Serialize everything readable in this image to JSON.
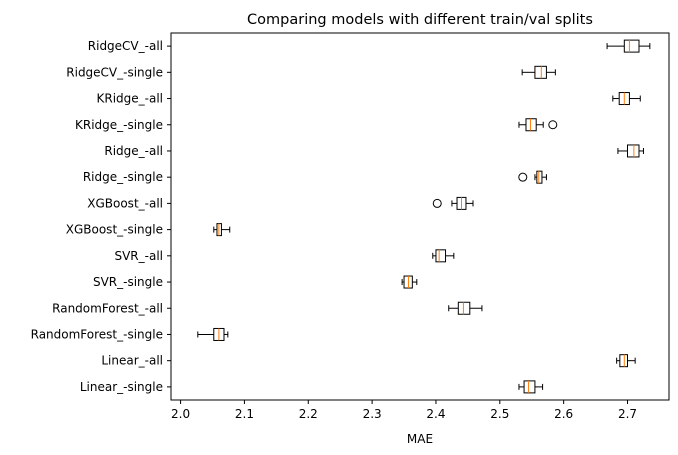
{
  "chart_data": {
    "type": "boxplot",
    "orientation": "horizontal",
    "title": "Comparing models with different train/val splits",
    "xlabel": "MAE",
    "ylabel": "",
    "xlim": [
      1.985,
      2.765
    ],
    "xticks": [
      2.0,
      2.1,
      2.2,
      2.3,
      2.4,
      2.5,
      2.6,
      2.7
    ],
    "xtick_labels": [
      "2.0",
      "2.1",
      "2.2",
      "2.3",
      "2.4",
      "2.5",
      "2.6",
      "2.7"
    ],
    "grid": false,
    "legend": false,
    "colors": {
      "box": "#000000",
      "median": "#ff7f0e",
      "flier": "#000000"
    },
    "categories": [
      "RidgeCV_-all",
      "RidgeCV_-single",
      "KRidge_-all",
      "KRidge_-single",
      "Ridge_-all",
      "Ridge_-single",
      "XGBoost_-all",
      "XGBoost_-single",
      "SVR_-all",
      "SVR_-single",
      "RandomForest_-all",
      "RandomForest_-single",
      "Linear_-all",
      "Linear_-single"
    ],
    "boxes": [
      {
        "whislo": 2.668,
        "q1": 2.695,
        "med": 2.703,
        "q3": 2.718,
        "whishi": 2.735,
        "fliers": []
      },
      {
        "whislo": 2.535,
        "q1": 2.555,
        "med": 2.565,
        "q3": 2.573,
        "whishi": 2.587,
        "fliers": []
      },
      {
        "whislo": 2.677,
        "q1": 2.687,
        "med": 2.695,
        "q3": 2.703,
        "whishi": 2.72,
        "fliers": []
      },
      {
        "whislo": 2.53,
        "q1": 2.541,
        "med": 2.548,
        "q3": 2.557,
        "whishi": 2.568,
        "fliers": [
          2.583
        ]
      },
      {
        "whislo": 2.685,
        "q1": 2.7,
        "med": 2.71,
        "q3": 2.718,
        "whishi": 2.725,
        "fliers": []
      },
      {
        "whislo": 2.555,
        "q1": 2.558,
        "med": 2.561,
        "q3": 2.566,
        "whishi": 2.573,
        "fliers": [
          2.536
        ]
      },
      {
        "whislo": 2.425,
        "q1": 2.433,
        "med": 2.44,
        "q3": 2.447,
        "whishi": 2.458,
        "fliers": [
          2.402
        ]
      },
      {
        "whislo": 2.052,
        "q1": 2.057,
        "med": 2.06,
        "q3": 2.064,
        "whishi": 2.077,
        "fliers": []
      },
      {
        "whislo": 2.395,
        "q1": 2.4,
        "med": 2.405,
        "q3": 2.415,
        "whishi": 2.428,
        "fliers": []
      },
      {
        "whislo": 2.347,
        "q1": 2.35,
        "med": 2.357,
        "q3": 2.363,
        "whishi": 2.37,
        "fliers": []
      },
      {
        "whislo": 2.42,
        "q1": 2.435,
        "med": 2.443,
        "q3": 2.453,
        "whishi": 2.472,
        "fliers": []
      },
      {
        "whislo": 2.027,
        "q1": 2.052,
        "med": 2.06,
        "q3": 2.068,
        "whishi": 2.074,
        "fliers": []
      },
      {
        "whislo": 2.683,
        "q1": 2.688,
        "med": 2.695,
        "q3": 2.7,
        "whishi": 2.712,
        "fliers": []
      },
      {
        "whislo": 2.53,
        "q1": 2.538,
        "med": 2.545,
        "q3": 2.555,
        "whishi": 2.567,
        "fliers": []
      }
    ]
  }
}
